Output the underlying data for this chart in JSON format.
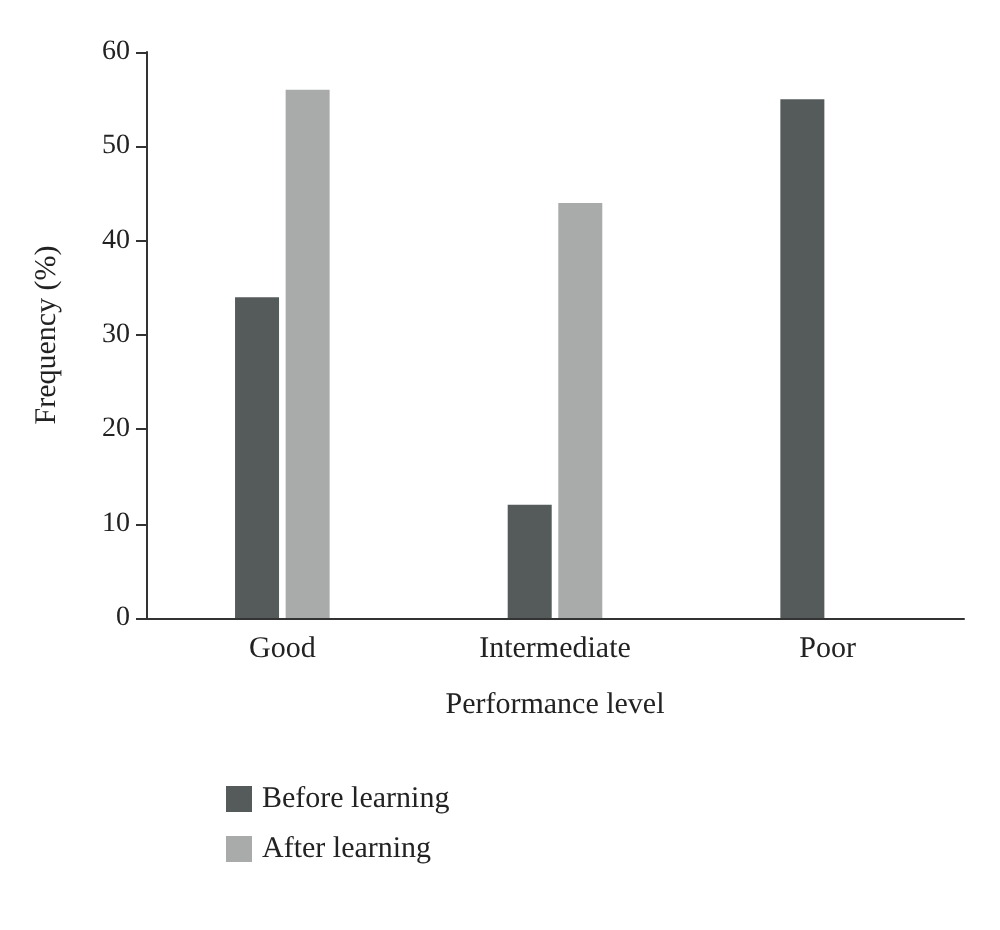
{
  "chart_data": {
    "type": "bar",
    "xlabel": "Performance level",
    "ylabel": "Frequency (%)",
    "categories": [
      "Good",
      "Intermediate",
      "Poor"
    ],
    "series": [
      {
        "name": "Before learning",
        "color": "#555a5a",
        "values": [
          34,
          12,
          55
        ]
      },
      {
        "name": "After learning",
        "color": "#a9abab",
        "values": [
          56,
          44,
          0
        ]
      }
    ],
    "ylim": [
      0,
      60
    ],
    "yticks": [
      0,
      10,
      20,
      30,
      40,
      50,
      60
    ],
    "grid": false,
    "legend": "bottom left"
  }
}
